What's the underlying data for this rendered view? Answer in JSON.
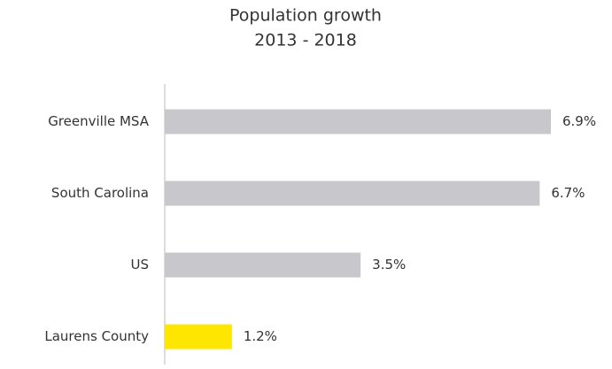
{
  "chart_data": {
    "type": "bar",
    "orientation": "horizontal",
    "title": "Population growth",
    "subtitle": "2013 - 2018",
    "categories": [
      "Greenville MSA",
      "South Carolina",
      "US",
      "Laurens County"
    ],
    "values": [
      6.9,
      6.7,
      3.5,
      1.2
    ],
    "value_labels": [
      "6.9%",
      "6.7%",
      "3.5%",
      "1.2%"
    ],
    "colors": [
      "#c8c7cc",
      "#c8c7cc",
      "#c8c7cc",
      "#ffe600"
    ]
  }
}
